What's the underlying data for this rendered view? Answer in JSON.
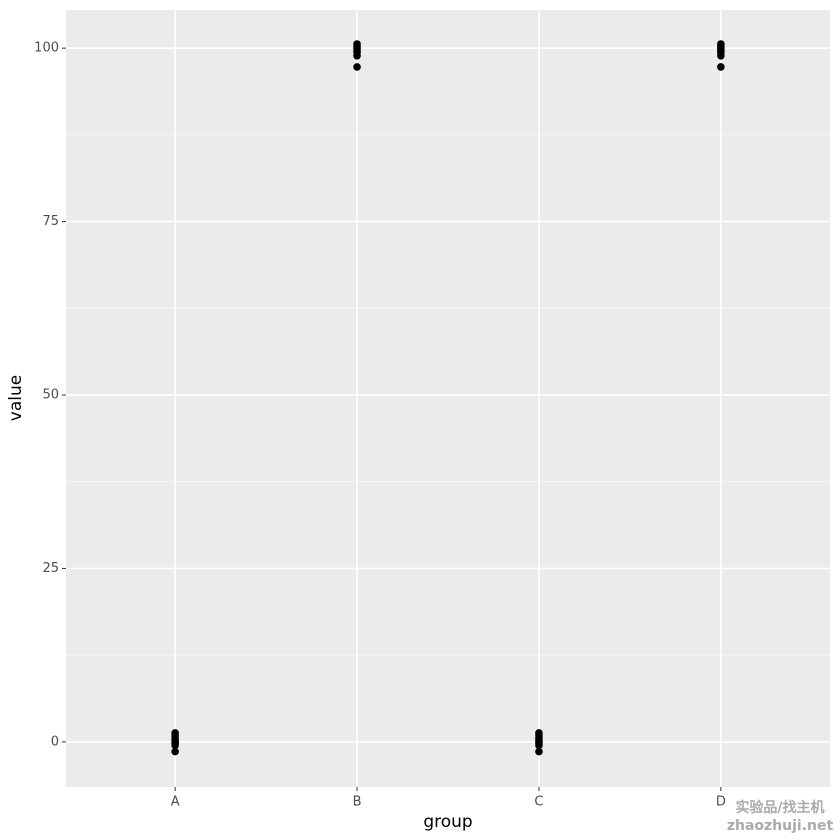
{
  "chart_data": {
    "type": "scatter",
    "x_label": "group",
    "y_label": "value",
    "categories": [
      "A",
      "B",
      "C",
      "D"
    ],
    "values": [
      [
        1.3,
        1.0,
        0.6,
        0.3,
        0,
        -0.2,
        -0.5,
        -1.4
      ],
      [
        100.6,
        100.3,
        100,
        99.7,
        99.4,
        98.9,
        97.3
      ],
      [
        1.3,
        1.0,
        0.6,
        0.3,
        0,
        -0.2,
        -0.5,
        -1.4
      ],
      [
        100.6,
        100.3,
        100,
        99.7,
        99.4,
        98.9,
        97.3
      ]
    ],
    "color": "#000000",
    "ylim": [
      -6.5,
      105.5
    ],
    "yticks": [
      0,
      25,
      50,
      75,
      100
    ],
    "grid": true,
    "watermark": [
      "实验品/找主机",
      "zhaozhuji.net"
    ]
  }
}
